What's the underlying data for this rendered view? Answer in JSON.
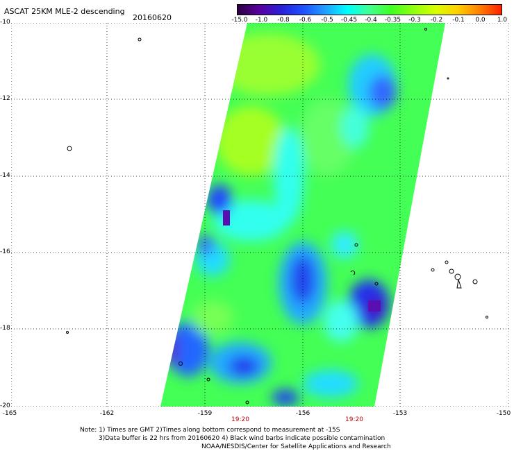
{
  "header": {
    "title": "ASCAT 25KM MLE-2 descending",
    "date": "20160620"
  },
  "colorbar": {
    "labels": [
      "-15.0",
      "-1.0",
      "-0.8",
      "-0.6",
      "-0.5",
      "-0.45",
      "-0.4",
      "-0.35",
      "-0.3",
      "-0.2",
      "-0.1",
      "0.0",
      "1.0"
    ],
    "colors": [
      "#2b0040",
      "#5a00a0",
      "#2a20d8",
      "#1e50ff",
      "#20a0ff",
      "#00ffff",
      "#40ff90",
      "#40ff20",
      "#90ff10",
      "#d8ff00",
      "#ffd000",
      "#ff8000",
      "#ff2000"
    ]
  },
  "axes": {
    "lat_labels": [
      "-10",
      "-12",
      "-14",
      "-16",
      "-18",
      "-20"
    ],
    "lon_labels": [
      "-165",
      "-162",
      "-159",
      "-156",
      "-153",
      "-150"
    ],
    "time_labels": [
      "19:20",
      "19:20"
    ]
  },
  "notes": {
    "line1": "Note: 1) Times are GMT 2)Times along bottom correspond to measurement at -15S",
    "line2": "3)Data buffer is 22 hrs from 20160620 4) Black wind barbs indicate possible contamination",
    "line3": "NOAA/NESDIS/Center for Satellite Applications and Research"
  }
}
